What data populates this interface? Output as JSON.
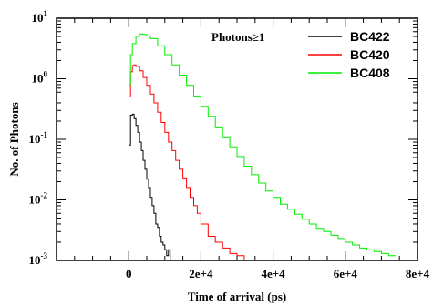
{
  "chart_data": {
    "type": "line",
    "title": "",
    "xlabel": "Time of arrival (ps)",
    "ylabel": "No. of Photons",
    "xlim": [
      -20000,
      80000
    ],
    "ylim": [
      0.001,
      10
    ],
    "y_scale": "log",
    "x_ticks": [
      {
        "value": 0,
        "label": "0"
      },
      {
        "value": 20000,
        "label": "2e+4"
      },
      {
        "value": 40000,
        "label": "4e+4"
      },
      {
        "value": 60000,
        "label": "6e+4"
      },
      {
        "value": 80000,
        "label": "8e+4"
      }
    ],
    "y_ticks": [
      {
        "value": 0.001,
        "base": "10",
        "exp": "-3"
      },
      {
        "value": 0.01,
        "base": "10",
        "exp": "-2"
      },
      {
        "value": 0.1,
        "base": "10",
        "exp": "-1"
      },
      {
        "value": 1,
        "base": "10",
        "exp": "0"
      },
      {
        "value": 10,
        "base": "10",
        "exp": "1"
      }
    ],
    "grid": false,
    "legend_placement": "top-right",
    "legend_header": "Photons≥1",
    "series": [
      {
        "name": "BC422",
        "color": "#000000",
        "x": [
          0,
          500,
          1000,
          1500,
          2000,
          2500,
          3000,
          3500,
          4000,
          4500,
          5000,
          5500,
          6000,
          6500,
          7000,
          7500,
          8000,
          8500,
          9000,
          9500,
          10000,
          10500,
          11000,
          11500,
          12000
        ],
        "y": [
          0.08,
          0.25,
          0.26,
          0.22,
          0.17,
          0.13,
          0.09,
          0.065,
          0.045,
          0.032,
          0.022,
          0.016,
          0.011,
          0.008,
          0.006,
          0.004,
          0.0035,
          0.0025,
          0.002,
          0.0018,
          0.0015,
          0.0012,
          0.0015,
          0.001,
          0.001
        ]
      },
      {
        "name": "BC420",
        "color": "#ff0000",
        "x": [
          0,
          500,
          1000,
          1500,
          2000,
          3000,
          4000,
          5000,
          6000,
          7000,
          8000,
          9000,
          10000,
          11000,
          12000,
          13000,
          14000,
          15000,
          16000,
          17000,
          18000,
          19000,
          20000,
          22000,
          24000,
          26000,
          28000,
          30000,
          32000
        ],
        "y": [
          0.5,
          1.3,
          1.65,
          1.7,
          1.6,
          1.35,
          1.05,
          0.78,
          0.56,
          0.4,
          0.28,
          0.19,
          0.13,
          0.09,
          0.065,
          0.045,
          0.032,
          0.023,
          0.016,
          0.011,
          0.008,
          0.006,
          0.004,
          0.0025,
          0.002,
          0.0016,
          0.0013,
          0.0012,
          0.001
        ]
      },
      {
        "name": "BC408",
        "color": "#00ee00",
        "x": [
          0,
          500,
          1000,
          2000,
          3000,
          4000,
          5000,
          6000,
          8000,
          10000,
          12000,
          14000,
          16000,
          18000,
          20000,
          22000,
          24000,
          26000,
          28000,
          30000,
          32000,
          34000,
          36000,
          38000,
          40000,
          42000,
          44000,
          46000,
          48000,
          50000,
          52000,
          54000,
          56000,
          58000,
          60000,
          62000,
          64000,
          66000,
          68000,
          70000,
          72000,
          74000
        ],
        "y": [
          0.8,
          2.5,
          3.8,
          5.0,
          5.5,
          5.4,
          5.1,
          4.6,
          3.5,
          2.5,
          1.7,
          1.15,
          0.78,
          0.52,
          0.35,
          0.24,
          0.16,
          0.11,
          0.075,
          0.052,
          0.036,
          0.026,
          0.019,
          0.014,
          0.011,
          0.0085,
          0.007,
          0.0058,
          0.0048,
          0.004,
          0.0034,
          0.003,
          0.0026,
          0.0023,
          0.002,
          0.0018,
          0.0016,
          0.0015,
          0.0014,
          0.0013,
          0.0012,
          0.0012
        ]
      }
    ]
  }
}
